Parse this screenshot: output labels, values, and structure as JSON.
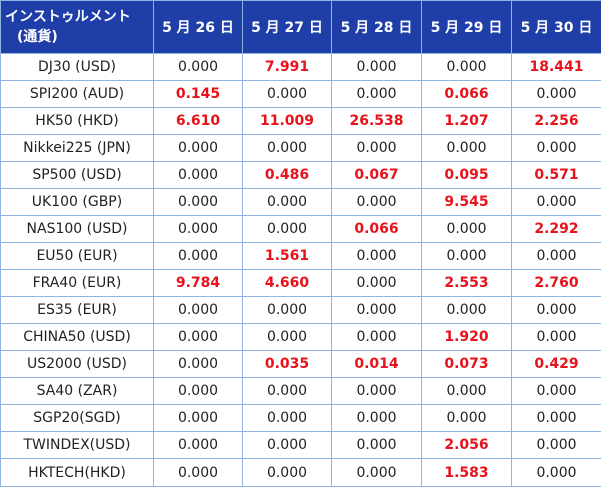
{
  "colors": {
    "header_bg": "#1f3ea8",
    "header_text": "#ffffff",
    "border": "#8eb4e3",
    "positive_value": "#e8121b",
    "zero_value": "#222222"
  },
  "header": {
    "instrument_line1": "インストゥルメント",
    "instrument_line2": "(通貨)",
    "dates": [
      "5 月 26 日",
      "5 月 27 日",
      "5 月 28 日",
      "5 月 29 日",
      "5 月 30 日"
    ]
  },
  "rows": [
    {
      "instrument": "DJ30 (USD)",
      "values": [
        "0.000",
        "7.991",
        "0.000",
        "0.000",
        "18.441"
      ]
    },
    {
      "instrument": "SPI200 (AUD)",
      "values": [
        "0.145",
        "0.000",
        "0.000",
        "0.066",
        "0.000"
      ]
    },
    {
      "instrument": "HK50 (HKD)",
      "values": [
        "6.610",
        "11.009",
        "26.538",
        "1.207",
        "2.256"
      ]
    },
    {
      "instrument": "Nikkei225 (JPN)",
      "values": [
        "0.000",
        "0.000",
        "0.000",
        "0.000",
        "0.000"
      ]
    },
    {
      "instrument": "SP500 (USD)",
      "values": [
        "0.000",
        "0.486",
        "0.067",
        "0.095",
        "0.571"
      ]
    },
    {
      "instrument": "UK100 (GBP)",
      "values": [
        "0.000",
        "0.000",
        "0.000",
        "9.545",
        "0.000"
      ]
    },
    {
      "instrument": "NAS100 (USD)",
      "values": [
        "0.000",
        "0.000",
        "0.066",
        "0.000",
        "2.292"
      ]
    },
    {
      "instrument": "EU50 (EUR)",
      "values": [
        "0.000",
        "1.561",
        "0.000",
        "0.000",
        "0.000"
      ]
    },
    {
      "instrument": "FRA40 (EUR)",
      "values": [
        "9.784",
        "4.660",
        "0.000",
        "2.553",
        "2.760"
      ]
    },
    {
      "instrument": "ES35 (EUR)",
      "values": [
        "0.000",
        "0.000",
        "0.000",
        "0.000",
        "0.000"
      ]
    },
    {
      "instrument": "CHINA50 (USD)",
      "values": [
        "0.000",
        "0.000",
        "0.000",
        "1.920",
        "0.000"
      ]
    },
    {
      "instrument": "US2000 (USD)",
      "values": [
        "0.000",
        "0.035",
        "0.014",
        "0.073",
        "0.429"
      ]
    },
    {
      "instrument": "SA40 (ZAR)",
      "values": [
        "0.000",
        "0.000",
        "0.000",
        "0.000",
        "0.000"
      ]
    },
    {
      "instrument": "SGP20(SGD)",
      "values": [
        "0.000",
        "0.000",
        "0.000",
        "0.000",
        "0.000"
      ]
    },
    {
      "instrument": "TWINDEX(USD)",
      "values": [
        "0.000",
        "0.000",
        "0.000",
        "2.056",
        "0.000"
      ]
    },
    {
      "instrument": "HKTECH(HKD)",
      "values": [
        "0.000",
        "0.000",
        "0.000",
        "1.583",
        "0.000"
      ]
    }
  ]
}
